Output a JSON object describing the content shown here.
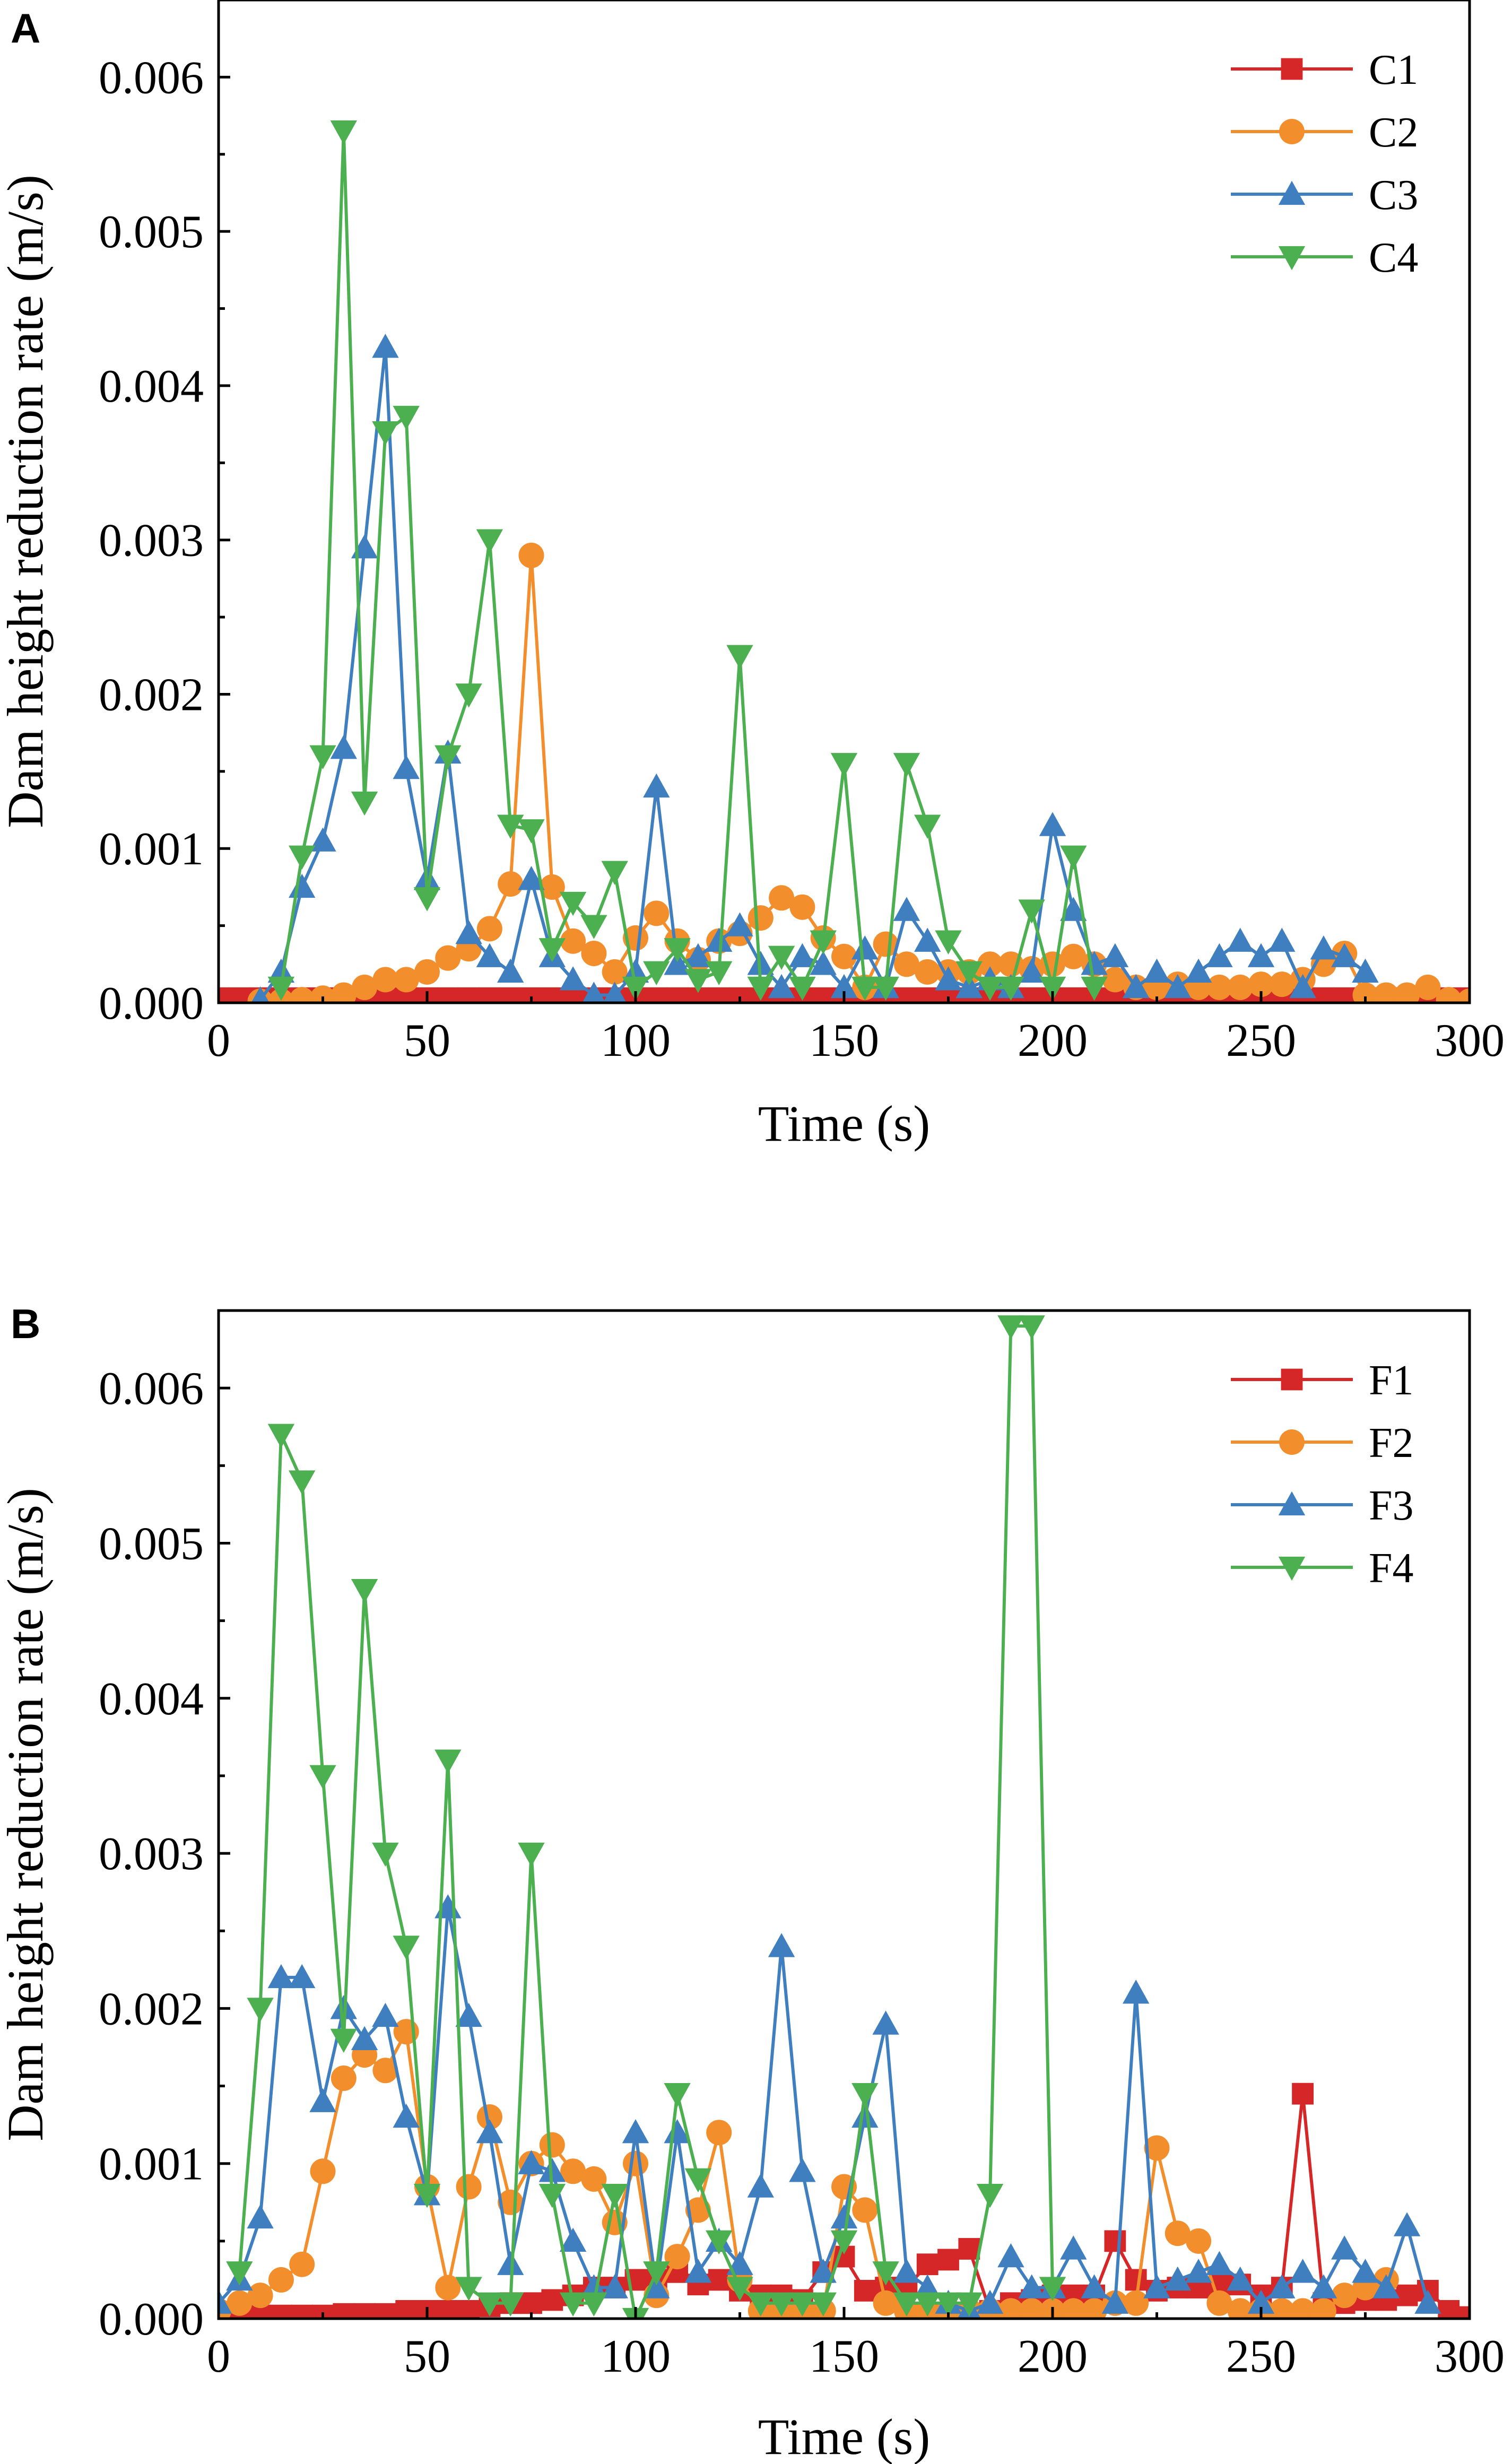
{
  "chart_data": [
    {
      "panel_label": "A",
      "type": "line",
      "xlabel": "Time (s)",
      "ylabel": "Dam height reduction rate (m/s)",
      "xlim": [
        0,
        300
      ],
      "ylim": [
        0,
        0.0065
      ],
      "xticks": [
        0,
        50,
        100,
        150,
        200,
        250,
        300
      ],
      "yticks": [
        0,
        0.001,
        0.002,
        0.003,
        0.004,
        0.005,
        0.006
      ],
      "xtick_labels": [
        "0",
        "50",
        "100",
        "150",
        "200",
        "250",
        "300"
      ],
      "ytick_labels": [
        "0.000",
        "0.001",
        "0.002",
        "0.003",
        "0.004",
        "0.005",
        "0.006"
      ],
      "legend_position": "top-right",
      "series": [
        {
          "name": "C1",
          "color": "#d62728",
          "marker": "square",
          "x": [
            0,
            5,
            10,
            15,
            20,
            25,
            30,
            35,
            40,
            45,
            50,
            55,
            60,
            65,
            70,
            75,
            80,
            85,
            90,
            95,
            100,
            105,
            110,
            115,
            120,
            125,
            130,
            135,
            140,
            145,
            150,
            155,
            160,
            165,
            170,
            175,
            180,
            185,
            190,
            195,
            200,
            205,
            210,
            215,
            220,
            225,
            230,
            235,
            240,
            245,
            250,
            255,
            260,
            265,
            270,
            275,
            280,
            285,
            290,
            295,
            300
          ],
          "y": [
            3e-05,
            3e-05,
            3e-05,
            3e-05,
            3e-05,
            3e-05,
            3e-05,
            3e-05,
            3e-05,
            3e-05,
            3e-05,
            3e-05,
            3e-05,
            3e-05,
            3e-05,
            3e-05,
            3e-05,
            3e-05,
            3e-05,
            3e-05,
            3e-05,
            3e-05,
            3e-05,
            3e-05,
            3e-05,
            3e-05,
            3e-05,
            3e-05,
            3e-05,
            3e-05,
            3e-05,
            3e-05,
            3e-05,
            3e-05,
            3e-05,
            3e-05,
            3e-05,
            3e-05,
            3e-05,
            3e-05,
            3e-05,
            3e-05,
            3e-05,
            3e-05,
            3e-05,
            3e-05,
            3e-05,
            3e-05,
            3e-05,
            3e-05,
            3e-05,
            3e-05,
            3e-05,
            3e-05,
            3e-05,
            3e-05,
            3e-05,
            3e-05,
            3e-05,
            3e-05,
            3e-05
          ]
        },
        {
          "name": "C2",
          "color": "#f28e2b",
          "marker": "circle",
          "x": [
            10,
            15,
            20,
            25,
            30,
            35,
            40,
            45,
            50,
            55,
            60,
            65,
            70,
            75,
            80,
            85,
            90,
            95,
            100,
            105,
            110,
            115,
            120,
            125,
            130,
            135,
            140,
            145,
            150,
            155,
            160,
            165,
            170,
            175,
            180,
            185,
            190,
            195,
            200,
            205,
            210,
            215,
            220,
            225,
            230,
            235,
            240,
            245,
            250,
            255,
            260,
            265,
            270,
            275,
            280,
            285,
            290,
            295,
            300
          ],
          "y": [
            1e-05,
            1e-05,
            2e-05,
            3e-05,
            5e-05,
            0.0001,
            0.00015,
            0.00015,
            0.0002,
            0.00029,
            0.00035,
            0.00048,
            0.00077,
            0.0029,
            0.00075,
            0.0004,
            0.00032,
            0.0002,
            0.00042,
            0.00058,
            0.0004,
            0.00028,
            0.0004,
            0.00045,
            0.00055,
            0.00068,
            0.00062,
            0.00042,
            0.0003,
            0.0001,
            0.00038,
            0.00025,
            0.0002,
            0.0002,
            0.0002,
            0.00025,
            0.00025,
            0.00022,
            0.00025,
            0.0003,
            0.00025,
            0.00015,
            0.0001,
            0.0001,
            0.00012,
            0.0001,
            0.0001,
            0.0001,
            0.00012,
            0.00012,
            0.00015,
            0.00025,
            0.00032,
            5e-05,
            5e-05,
            5e-05,
            0.0001,
            2e-05,
            1e-05
          ]
        },
        {
          "name": "C3",
          "color": "#3f7fbf",
          "marker": "triangle-up",
          "x": [
            10,
            15,
            20,
            25,
            30,
            35,
            40,
            45,
            50,
            55,
            60,
            65,
            70,
            75,
            80,
            85,
            90,
            95,
            100,
            105,
            110,
            115,
            120,
            125,
            130,
            135,
            140,
            145,
            150,
            155,
            160,
            165,
            170,
            175,
            180,
            185,
            190,
            195,
            200,
            205,
            210,
            215,
            220,
            225,
            230,
            235,
            240,
            245,
            250,
            255,
            260,
            265,
            270,
            275
          ],
          "y": [
            2e-05,
            0.0002,
            0.00075,
            0.00105,
            0.00165,
            0.00295,
            0.00425,
            0.00152,
            0.0008,
            0.00162,
            0.00045,
            0.0003,
            0.0002,
            0.0008,
            0.0003,
            0.00015,
            5e-05,
            5e-05,
            0.0002,
            0.0014,
            0.00025,
            0.0003,
            0.0004,
            0.0005,
            0.00025,
            0.0001,
            0.0003,
            0.00025,
            0.0001,
            0.00035,
            0.0001,
            0.0006,
            0.0004,
            0.00015,
            0.0001,
            0.00015,
            0.0001,
            0.0002,
            0.00115,
            0.0006,
            0.00025,
            0.0003,
            0.0001,
            0.0002,
            0.0001,
            0.0002,
            0.0003,
            0.0004,
            0.0003,
            0.0004,
            0.0001,
            0.00035,
            0.0003,
            0.0002
          ]
        },
        {
          "name": "C4",
          "color": "#4caf50",
          "marker": "triangle-down",
          "x": [
            15,
            20,
            25,
            30,
            35,
            40,
            45,
            50,
            55,
            60,
            65,
            70,
            75,
            80,
            85,
            90,
            95,
            100,
            105,
            110,
            115,
            120,
            125,
            130,
            135,
            140,
            145,
            150,
            155,
            160,
            165,
            170,
            175,
            180,
            185,
            190,
            195,
            200,
            205,
            210
          ],
          "y": [
            0.0001,
            0.00095,
            0.0016,
            0.00565,
            0.0013,
            0.0037,
            0.0038,
            0.00068,
            0.0016,
            0.002,
            0.003,
            0.00115,
            0.00112,
            0.00035,
            0.00065,
            0.0005,
            0.00085,
            0.0001,
            0.0002,
            0.00035,
            0.00015,
            0.0002,
            0.00225,
            0.0001,
            0.0003,
            0.0001,
            0.0004,
            0.00155,
            0.0001,
            0.0001,
            0.00155,
            0.00115,
            0.0004,
            0.0002,
            0.0001,
            0.0001,
            0.0006,
            0.0001,
            0.00095,
            0.0001
          ]
        }
      ]
    },
    {
      "panel_label": "B",
      "type": "line",
      "xlabel": "Time (s)",
      "ylabel": "Dam height reduction rate (m/s)",
      "xlim": [
        0,
        300
      ],
      "ylim": [
        0,
        0.0065
      ],
      "xticks": [
        0,
        50,
        100,
        150,
        200,
        250,
        300
      ],
      "yticks": [
        0,
        0.001,
        0.002,
        0.003,
        0.004,
        0.005,
        0.006
      ],
      "xtick_labels": [
        "0",
        "50",
        "100",
        "150",
        "200",
        "250",
        "300"
      ],
      "ytick_labels": [
        "0.000",
        "0.001",
        "0.002",
        "0.003",
        "0.004",
        "0.005",
        "0.006"
      ],
      "legend_position": "top-right",
      "series": [
        {
          "name": "F1",
          "color": "#d62728",
          "marker": "square",
          "x": [
            0,
            5,
            10,
            15,
            20,
            25,
            30,
            35,
            40,
            45,
            50,
            55,
            60,
            65,
            70,
            75,
            80,
            85,
            90,
            95,
            100,
            105,
            110,
            115,
            120,
            125,
            130,
            135,
            140,
            145,
            150,
            155,
            160,
            165,
            170,
            175,
            180,
            185,
            190,
            195,
            200,
            205,
            210,
            215,
            220,
            225,
            230,
            235,
            240,
            245,
            250,
            255,
            260,
            265,
            270,
            275,
            280,
            285,
            290,
            295,
            300
          ],
          "y": [
            1e-05,
            1e-05,
            2e-05,
            2e-05,
            2e-05,
            2e-05,
            3e-05,
            3e-05,
            3e-05,
            5e-05,
            5e-05,
            5e-05,
            5e-05,
            8e-05,
            0.0001,
            0.0001,
            0.00012,
            0.00015,
            0.0002,
            0.0002,
            0.00025,
            0.00025,
            0.0003,
            0.00022,
            0.00025,
            0.00018,
            0.00015,
            0.00015,
            0.00012,
            0.0003,
            0.0004,
            0.00018,
            0.0002,
            0.0002,
            0.00035,
            0.00038,
            0.00045,
            5e-05,
            0.0001,
            0.00012,
            0.00015,
            0.00015,
            0.00015,
            0.0005,
            0.00025,
            0.00018,
            0.0002,
            0.0002,
            0.00022,
            0.00022,
            0.00015,
            0.0002,
            0.00145,
            0.0001,
            0.0001,
            0.00012,
            0.00012,
            0.00015,
            0.00018,
            5e-05,
            1e-05
          ]
        },
        {
          "name": "F2",
          "color": "#f28e2b",
          "marker": "circle",
          "x": [
            0,
            5,
            10,
            15,
            20,
            25,
            30,
            35,
            40,
            45,
            50,
            55,
            60,
            65,
            70,
            75,
            80,
            85,
            90,
            95,
            100,
            105,
            110,
            115,
            120,
            125,
            130,
            135,
            140,
            145,
            150,
            155,
            160,
            165,
            170,
            175,
            180,
            185,
            190,
            195,
            200,
            205,
            210,
            215,
            220,
            225,
            230,
            235,
            240,
            245,
            250,
            255,
            260,
            265,
            270,
            275,
            280
          ],
          "y": [
            5e-05,
            0.0001,
            0.00015,
            0.00025,
            0.00035,
            0.00095,
            0.00155,
            0.0017,
            0.0016,
            0.00185,
            0.00085,
            0.0002,
            0.00085,
            0.0013,
            0.00075,
            0.001,
            0.00112,
            0.00095,
            0.0009,
            0.00062,
            0.001,
            0.00015,
            0.0004,
            0.0007,
            0.0012,
            0.00025,
            5e-05,
            5e-05,
            5e-05,
            5e-05,
            0.00085,
            0.0007,
            0.0001,
            5e-05,
            5e-05,
            5e-05,
            5e-05,
            5e-05,
            5e-05,
            5e-05,
            5e-05,
            5e-05,
            5e-05,
            0.0001,
            0.0001,
            0.0011,
            0.00055,
            0.0005,
            0.0001,
            5e-05,
            5e-05,
            5e-05,
            5e-05,
            5e-05,
            0.00015,
            0.0002,
            0.00025
          ]
        },
        {
          "name": "F3",
          "color": "#3f7fbf",
          "marker": "triangle-up",
          "x": [
            0,
            5,
            10,
            15,
            20,
            25,
            30,
            35,
            40,
            45,
            50,
            55,
            60,
            65,
            70,
            75,
            80,
            85,
            90,
            95,
            100,
            105,
            110,
            115,
            120,
            125,
            130,
            135,
            140,
            145,
            150,
            155,
            160,
            165,
            170,
            175,
            180,
            185,
            190,
            195,
            200,
            205,
            210,
            215,
            220,
            225,
            230,
            235,
            240,
            245,
            250,
            255,
            260,
            265,
            270,
            275,
            280,
            285,
            290
          ],
          "y": [
            0.0001,
            0.00025,
            0.00065,
            0.0022,
            0.0022,
            0.0014,
            0.002,
            0.0018,
            0.00195,
            0.0013,
            0.0008,
            0.00265,
            0.00195,
            0.0012,
            0.00035,
            0.001,
            0.00095,
            0.0005,
            0.0002,
            0.0002,
            0.0012,
            0.0002,
            0.0012,
            0.0003,
            0.0005,
            0.00035,
            0.00085,
            0.0024,
            0.00095,
            0.0003,
            0.00065,
            0.0013,
            0.0019,
            0.0003,
            0.0002,
            0.0001,
            5e-05,
            0.0001,
            0.0004,
            0.0002,
            0.0002,
            0.00045,
            0.0002,
            0.0001,
            0.0021,
            0.0002,
            0.00025,
            0.0003,
            0.00035,
            0.00025,
            0.0001,
            0.0002,
            0.0003,
            0.0002,
            0.00045,
            0.0003,
            0.0002,
            0.0006,
            0.0001
          ]
        },
        {
          "name": "F4",
          "color": "#4caf50",
          "marker": "triangle-down",
          "x": [
            5,
            10,
            15,
            20,
            25,
            30,
            35,
            40,
            45,
            50,
            55,
            60,
            65,
            70,
            75,
            80,
            85,
            90,
            95,
            100,
            105,
            110,
            115,
            120,
            125,
            130,
            135,
            140,
            145,
            150,
            155,
            160,
            165,
            170,
            175,
            180,
            185,
            190,
            195,
            200
          ],
          "y": [
            0.0003,
            0.002,
            0.0057,
            0.0054,
            0.0035,
            0.0018,
            0.0047,
            0.003,
            0.0024,
            0.0008,
            0.0036,
            0.0002,
            0.0001,
            0.0001,
            0.003,
            0.0008,
            0.0001,
            0.0001,
            0.0008,
            0.0,
            0.0003,
            0.00145,
            0.0009,
            0.0005,
            0.0002,
            0.0001,
            0.0001,
            0.0001,
            0.0001,
            0.0005,
            0.00145,
            0.0003,
            0.0001,
            0.0001,
            0.0001,
            0.0001,
            0.0008,
            0.0064,
            0.0064,
            0.0002
          ]
        }
      ]
    }
  ]
}
